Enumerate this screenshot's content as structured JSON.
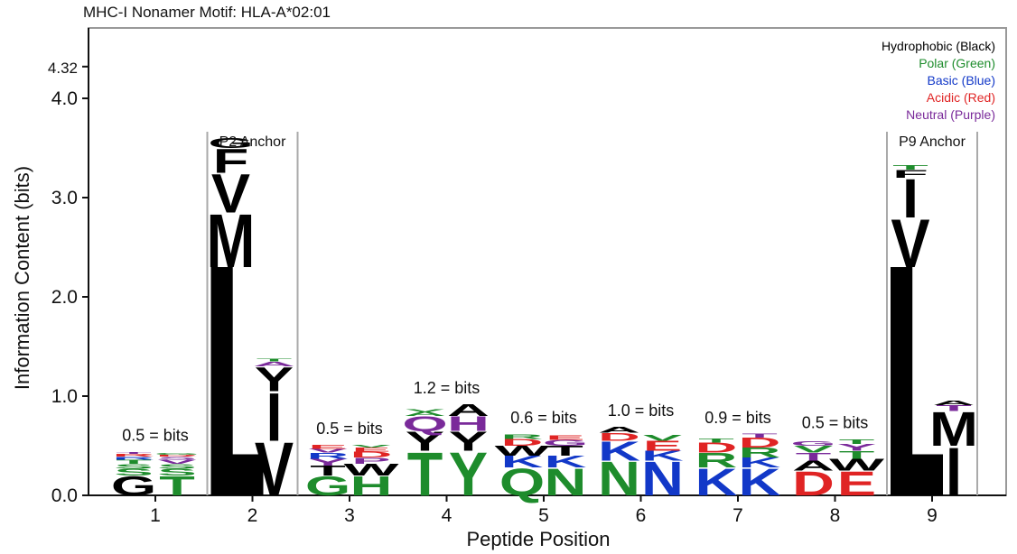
{
  "chart_data": {
    "type": "sequence-logo",
    "title": "MHC-I Nonamer Motif: HLA-A*02:01",
    "xlabel": "Peptide Position",
    "ylabel": "Information Content (bits)",
    "ylim": [
      0,
      4.5
    ],
    "yticks": [
      "0.0",
      "1.0",
      "2.0",
      "3.0",
      "4.0",
      "4.32"
    ],
    "ytick_values": [
      0,
      1,
      2,
      3,
      4,
      4.32
    ],
    "grid": false,
    "legend_placement": "top-right",
    "legend": [
      {
        "label": "Hydrophobic (Black)",
        "color": "#000000"
      },
      {
        "label": "Polar (Green)",
        "color": "#1e8c2c"
      },
      {
        "label": "Basic (Blue)",
        "color": "#1238c8"
      },
      {
        "label": "Acidic (Red)",
        "color": "#e02424"
      },
      {
        "label": "Neutral (Purple)",
        "color": "#7a2a9a"
      }
    ],
    "class_colors": {
      "H": "#000000",
      "P": "#1e8c2c",
      "B": "#1238c8",
      "A": "#e02424",
      "N": "#7a2a9a"
    },
    "positions": [
      {
        "pos": "1",
        "note": "0.5 = bits",
        "stacks": [
          [
            [
              "G",
              "H",
              0.2
            ],
            [
              "S",
              "P",
              0.07
            ],
            [
              "S",
              "P",
              0.05
            ],
            [
              "T",
              "P",
              0.04
            ],
            [
              "R",
              "B",
              0.03
            ],
            [
              "R",
              "A",
              0.03
            ],
            [
              "T",
              "N",
              0.02
            ]
          ],
          [
            [
              "T",
              "P",
              0.2
            ],
            [
              "S",
              "P",
              0.07
            ],
            [
              "S",
              "P",
              0.05
            ],
            [
              "V",
              "N",
              0.04
            ],
            [
              "S",
              "N",
              0.03
            ],
            [
              "R",
              "A",
              0.02
            ],
            [
              "G",
              "P",
              0.02
            ]
          ]
        ]
      },
      {
        "pos": "2",
        "anchor": "P2 Anchor",
        "stacks": [
          [
            [
              "L",
              "H",
              2.3
            ],
            [
              "M",
              "H",
              0.55
            ],
            [
              "V",
              "H",
              0.4
            ],
            [
              "F",
              "H",
              0.25
            ],
            [
              "G",
              "H",
              0.1
            ]
          ],
          [
            [
              "V",
              "H",
              0.55
            ],
            [
              "I",
              "H",
              0.5
            ],
            [
              "Y",
              "H",
              0.25
            ],
            [
              "A",
              "N",
              0.05
            ],
            [
              "T",
              "P",
              0.03
            ]
          ]
        ]
      },
      {
        "pos": "3",
        "note": "0.5 = bits",
        "stacks": [
          [
            [
              "G",
              "P",
              0.2
            ],
            [
              "T",
              "H",
              0.1
            ],
            [
              "Y",
              "N",
              0.07
            ],
            [
              "R",
              "B",
              0.06
            ],
            [
              "V",
              "N",
              0.04
            ],
            [
              "E",
              "A",
              0.04
            ]
          ],
          [
            [
              "H",
              "P",
              0.2
            ],
            [
              "W",
              "H",
              0.12
            ],
            [
              "P",
              "N",
              0.06
            ],
            [
              "D",
              "A",
              0.06
            ],
            [
              "E",
              "A",
              0.04
            ],
            [
              "V",
              "P",
              0.03
            ]
          ]
        ]
      },
      {
        "pos": "4",
        "note": "1.2 = bits",
        "stacks": [
          [
            [
              "T",
              "P",
              0.45
            ],
            [
              "Y",
              "H",
              0.2
            ],
            [
              "Q",
              "N",
              0.15
            ],
            [
              "A",
              "P",
              0.04
            ],
            [
              "V",
              "P",
              0.03
            ]
          ],
          [
            [
              "Y",
              "P",
              0.45
            ],
            [
              "Y",
              "H",
              0.2
            ],
            [
              "H",
              "N",
              0.15
            ],
            [
              "A",
              "H",
              0.12
            ]
          ]
        ]
      },
      {
        "pos": "5",
        "note": "0.6 = bits",
        "stacks": [
          [
            [
              "Q",
              "P",
              0.28
            ],
            [
              "K",
              "B",
              0.12
            ],
            [
              "W",
              "H",
              0.1
            ],
            [
              "D",
              "A",
              0.07
            ],
            [
              "R",
              "P",
              0.05
            ]
          ],
          [
            [
              "N",
              "P",
              0.28
            ],
            [
              "K",
              "B",
              0.12
            ],
            [
              "T",
              "H",
              0.1
            ],
            [
              "G",
              "N",
              0.06
            ],
            [
              "E",
              "A",
              0.05
            ]
          ]
        ]
      },
      {
        "pos": "6",
        "note": "1.0 = bits",
        "stacks": [
          [
            [
              "N",
              "P",
              0.35
            ],
            [
              "K",
              "B",
              0.2
            ],
            [
              "D",
              "A",
              0.08
            ],
            [
              "A",
              "H",
              0.06
            ]
          ],
          [
            [
              "N",
              "B",
              0.35
            ],
            [
              "K",
              "B",
              0.1
            ],
            [
              "E",
              "A",
              0.1
            ],
            [
              "V",
              "P",
              0.06
            ]
          ]
        ]
      },
      {
        "pos": "7",
        "note": "0.9 = bits",
        "stacks": [
          [
            [
              "K",
              "B",
              0.28
            ],
            [
              "R",
              "P",
              0.15
            ],
            [
              "D",
              "A",
              0.1
            ],
            [
              "T",
              "P",
              0.04
            ]
          ],
          [
            [
              "K",
              "B",
              0.28
            ],
            [
              "K",
              "B",
              0.1
            ],
            [
              "R",
              "P",
              0.1
            ],
            [
              "D",
              "A",
              0.1
            ],
            [
              "T",
              "N",
              0.04
            ]
          ]
        ]
      },
      {
        "pos": "8",
        "note": "0.5 = bits",
        "stacks": [
          [
            [
              "D",
              "A",
              0.25
            ],
            [
              "A",
              "H",
              0.1
            ],
            [
              "T",
              "N",
              0.08
            ],
            [
              "V",
              "P",
              0.07
            ],
            [
              "G",
              "N",
              0.05
            ]
          ],
          [
            [
              "E",
              "A",
              0.25
            ],
            [
              "W",
              "H",
              0.12
            ],
            [
              "T",
              "P",
              0.08
            ],
            [
              "Y",
              "N",
              0.07
            ],
            [
              "T",
              "P",
              0.05
            ]
          ]
        ]
      },
      {
        "pos": "9",
        "anchor": "P9 Anchor",
        "stacks": [
          [
            [
              "L",
              "H",
              2.3
            ],
            [
              "V",
              "H",
              0.5
            ],
            [
              "I",
              "H",
              0.4
            ],
            [
              "F",
              "H",
              0.08
            ],
            [
              "T",
              "P",
              0.05
            ]
          ],
          [
            [
              "I",
              "H",
              0.5
            ],
            [
              "M",
              "H",
              0.35
            ],
            [
              "T",
              "N",
              0.06
            ],
            [
              "A",
              "H",
              0.05
            ]
          ]
        ]
      }
    ]
  }
}
